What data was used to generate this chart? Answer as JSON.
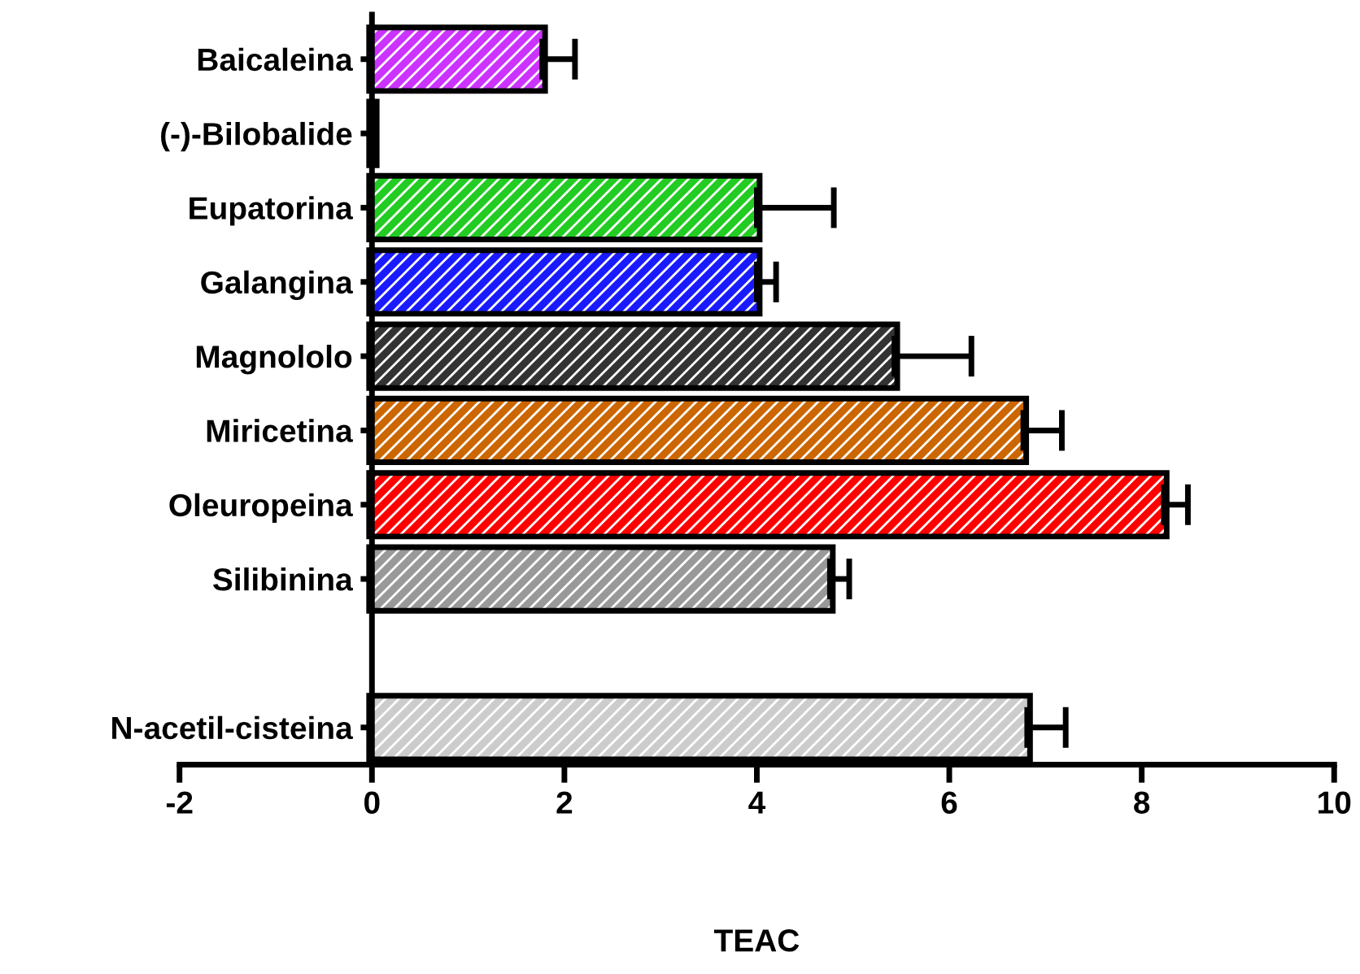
{
  "chart_data": {
    "type": "bar",
    "orientation": "horizontal",
    "xlabel": "TEAC",
    "categories": [
      "Baicaleina",
      "(-)-Bilobalide",
      "Eupatorina",
      "Galangina",
      "Magnololo",
      "Miricetina",
      "Oleuropeina",
      "Silibinina",
      null,
      "N-acetil-cisteina"
    ],
    "values": [
      1.77,
      0.02,
      4.0,
      4.0,
      5.43,
      6.77,
      8.23,
      4.76,
      null,
      6.81
    ],
    "errors": [
      0.34,
      null,
      0.8,
      0.2,
      0.8,
      0.4,
      0.25,
      0.2,
      null,
      0.4
    ],
    "colors": [
      "#cc33ff",
      "#000000",
      "#22cc22",
      "#1a1aff",
      "#333333",
      "#cc6600",
      "#ff0000",
      "#999999",
      null,
      "#cccccc"
    ],
    "xlim": [
      -2,
      10
    ],
    "xticks": [
      -2,
      0,
      2,
      4,
      6,
      8,
      10
    ],
    "grid": false
  }
}
